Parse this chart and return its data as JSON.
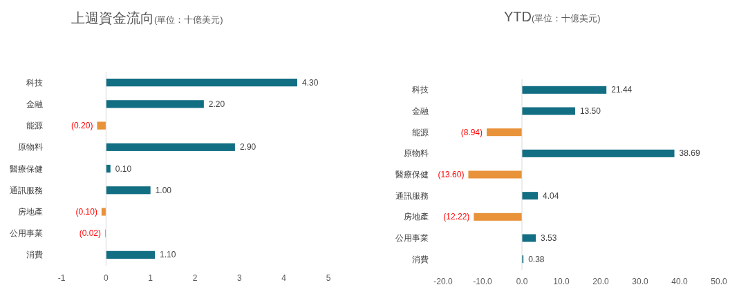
{
  "chart_data": [
    {
      "type": "bar",
      "orientation": "horizontal",
      "title": "上週資金流向",
      "subtitle": "(單位：十億美元)",
      "categories": [
        "科技",
        "金融",
        "能源",
        "原物料",
        "醫療保健",
        "通訊服務",
        "房地產",
        "公用事業",
        "消費"
      ],
      "values": [
        4.3,
        2.2,
        -0.2,
        2.9,
        0.1,
        1.0,
        -0.1,
        -0.02,
        1.1
      ],
      "colors": [
        "#126e82",
        "#126e82",
        "#e8923a",
        "#126e82",
        "#126e82",
        "#126e82",
        "#e8923a",
        "#e8923a",
        "#126e82"
      ],
      "value_labels": [
        "4.30",
        "2.20",
        "(0.20)",
        "2.90",
        "0.10",
        "1.00",
        "(0.10)",
        "(0.02)",
        "1.10"
      ],
      "xlim": [
        -1,
        5
      ],
      "xticks": [
        -1,
        0,
        1,
        2,
        3,
        4,
        5
      ]
    },
    {
      "type": "bar",
      "orientation": "horizontal",
      "title": "YTD",
      "subtitle": "(單位：十億美元)",
      "categories": [
        "科技",
        "金融",
        "能源",
        "原物料",
        "醫療保健",
        "通訊服務",
        "房地產",
        "公用事業",
        "消費"
      ],
      "values": [
        21.44,
        13.5,
        -8.94,
        38.69,
        -13.6,
        4.04,
        -12.22,
        3.53,
        0.38
      ],
      "colors": [
        "#126e82",
        "#126e82",
        "#e8923a",
        "#126e82",
        "#e8923a",
        "#126e82",
        "#e8923a",
        "#126e82",
        "#126e82"
      ],
      "value_labels": [
        "21.44",
        "13.50",
        "(8.94)",
        "38.69",
        "(13.60)",
        "4.04",
        "(12.22)",
        "3.53",
        "0.38"
      ],
      "xlim": [
        -20,
        50
      ],
      "xticks": [
        {
          "value": -20,
          "label": "-20.0"
        },
        {
          "value": -10,
          "label": "-10.0"
        },
        {
          "value": 0,
          "label": "0.0"
        },
        {
          "value": 10,
          "label": "10.0"
        },
        {
          "value": 20,
          "label": "20.0"
        },
        {
          "value": 30,
          "label": "30.0"
        },
        {
          "value": 40,
          "label": "40.0"
        },
        {
          "value": 50,
          "label": "50.0"
        }
      ]
    }
  ]
}
